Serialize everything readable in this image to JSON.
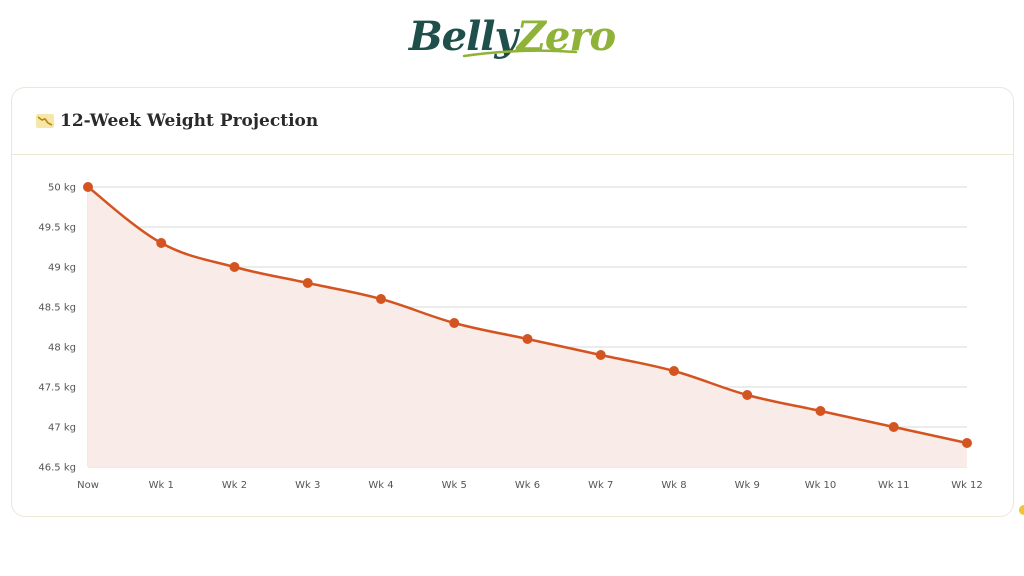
{
  "brand": {
    "part1": "Belly",
    "part2": "Zero"
  },
  "card": {
    "title": "12-Week Weight Projection",
    "icon": "chart-decreasing-icon"
  },
  "colors": {
    "line": "#d35420",
    "fill": "#f9ece8",
    "grid": "#d9d9d9",
    "brand_dark": "#1f4f4b",
    "brand_green": "#8fb339"
  },
  "chart_data": {
    "type": "area",
    "categories": [
      "Now",
      "Wk 1",
      "Wk 2",
      "Wk 3",
      "Wk 4",
      "Wk 5",
      "Wk 6",
      "Wk 7",
      "Wk 8",
      "Wk 9",
      "Wk 10",
      "Wk 11",
      "Wk 12"
    ],
    "values": [
      50,
      49.3,
      49,
      48.8,
      48.6,
      48.3,
      48.1,
      47.9,
      47.7,
      47.4,
      47.2,
      47,
      46.8
    ],
    "yticks": [
      "46.5 kg",
      "47 kg",
      "47.5 kg",
      "48 kg",
      "48.5 kg",
      "49 kg",
      "49.5 kg",
      "50 kg"
    ],
    "ylim": [
      46.5,
      50
    ],
    "title": "",
    "xlabel": "",
    "ylabel": "",
    "grid": true,
    "legend": "none"
  }
}
